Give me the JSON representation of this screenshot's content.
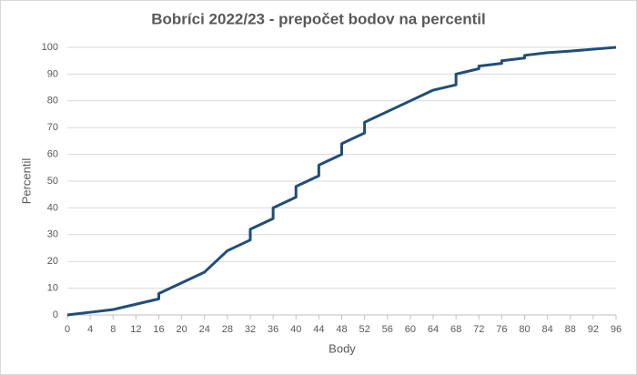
{
  "chart_data": {
    "type": "line",
    "title": "Bobríci 2022/23 - prepočet bodov na percentil",
    "x_label": "Body",
    "y_label": "Percentil",
    "x": [
      0,
      4,
      8,
      12,
      16,
      16,
      20,
      24,
      28,
      32,
      32,
      36,
      36,
      40,
      40,
      44,
      44,
      48,
      48,
      52,
      52,
      56,
      60,
      64,
      68,
      68,
      72,
      72,
      76,
      76,
      80,
      80,
      84,
      88,
      92,
      96
    ],
    "series": [
      {
        "name": "Percentil",
        "color": "#1f4e79",
        "values": [
          0,
          1,
          2,
          4,
          6,
          8,
          12,
          16,
          24,
          28,
          32,
          36,
          40,
          44,
          48,
          52,
          56,
          60,
          64,
          68,
          72,
          76,
          80,
          84,
          86,
          90,
          92,
          93,
          94,
          95,
          96,
          97,
          98,
          98.6,
          99.3,
          100
        ]
      }
    ],
    "xlim": [
      0,
      96
    ],
    "xticks": [
      0,
      4,
      8,
      12,
      16,
      20,
      24,
      28,
      32,
      36,
      40,
      44,
      48,
      52,
      56,
      60,
      64,
      68,
      72,
      76,
      80,
      84,
      88,
      92,
      96
    ],
    "ylim": [
      0,
      100
    ],
    "yticks": [
      0,
      10,
      20,
      30,
      40,
      50,
      60,
      70,
      80,
      90,
      100
    ],
    "grid": true
  }
}
